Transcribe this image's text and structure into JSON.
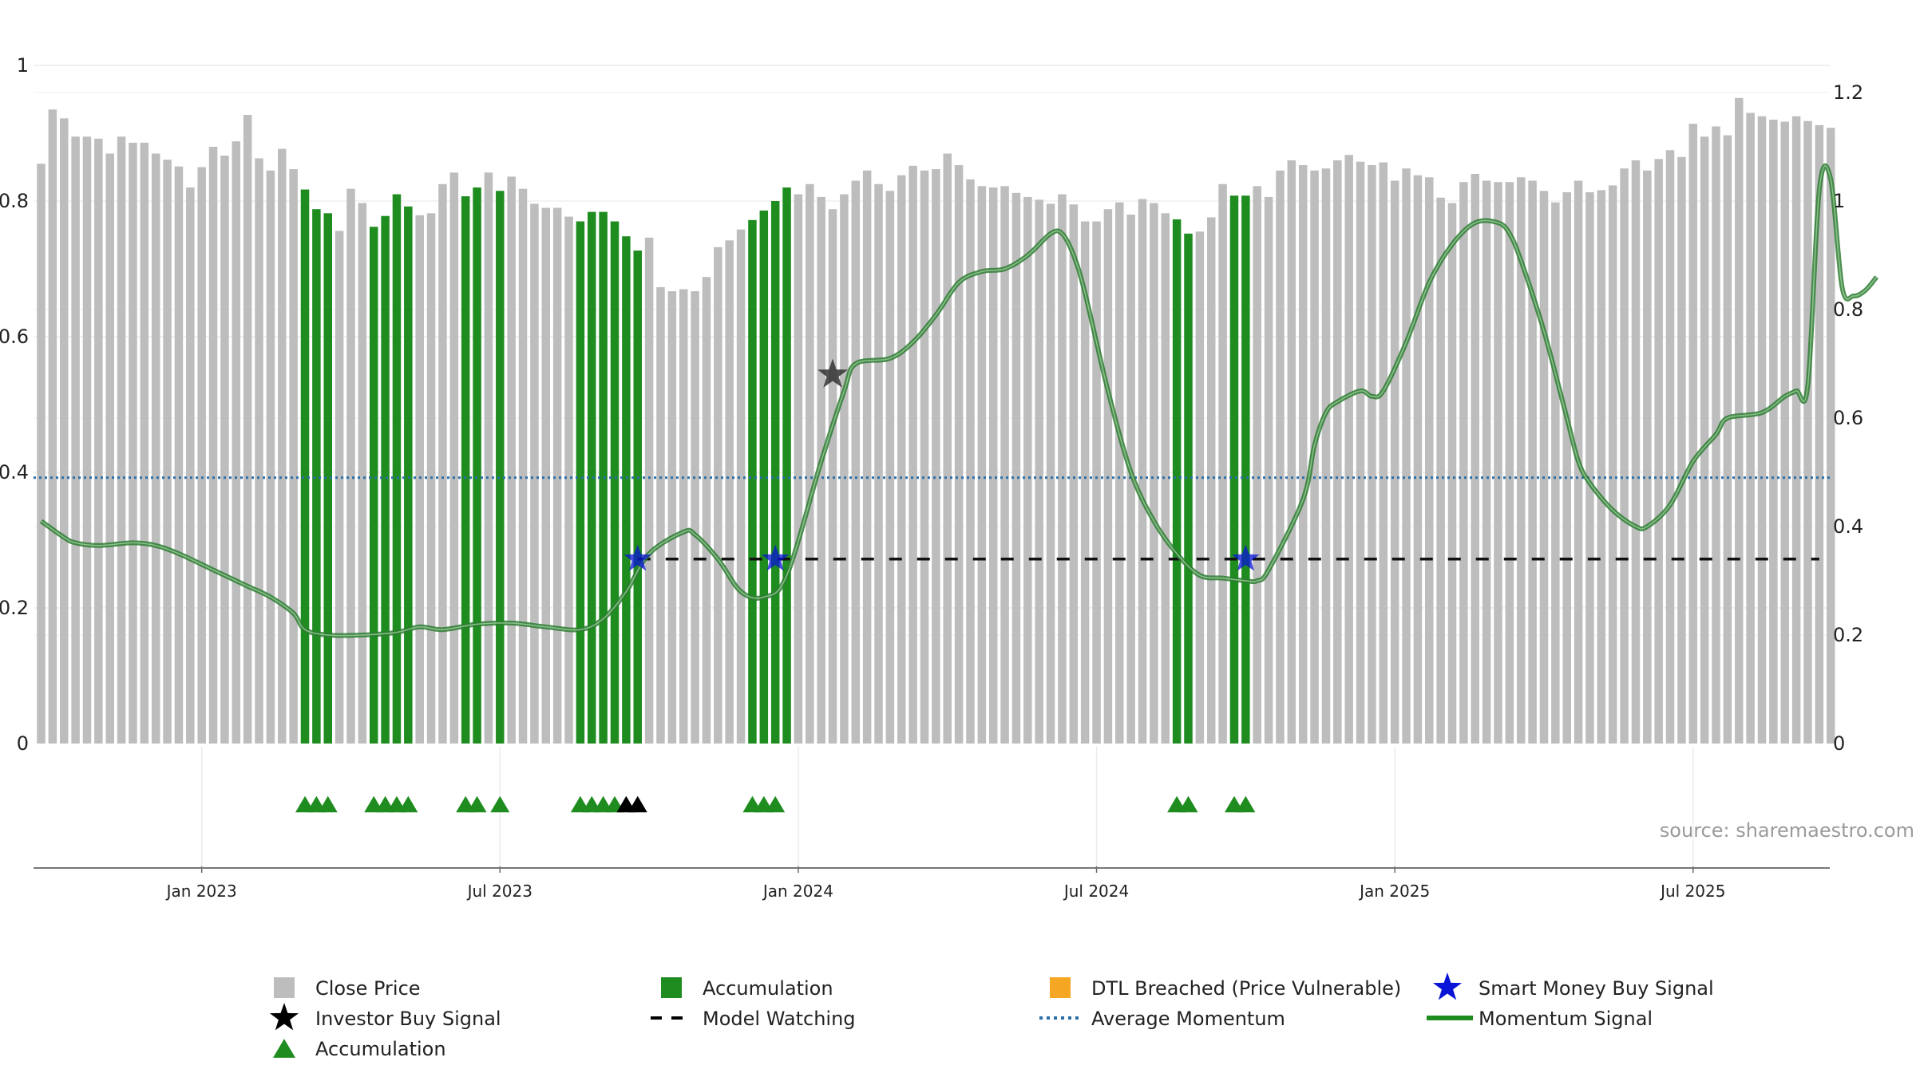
{
  "chart_data": {
    "type": "bar",
    "title": "",
    "source": "source: sharemaestro.com",
    "left_axis": {
      "ylim": [
        0,
        1
      ],
      "ticks": [
        "0",
        "0.2",
        "0.4",
        "0.6",
        "0.8",
        "1"
      ]
    },
    "right_axis": {
      "ylim": [
        0,
        1.25
      ],
      "ticks": [
        "0",
        "0.2",
        "0.4",
        "0.6",
        "0.8",
        "1",
        "1.2"
      ]
    },
    "date_labels": [
      "Jan 2023",
      "Jul 2023",
      "Jan 2024",
      "Jul 2024",
      "Jan 2025",
      "Jul 2025"
    ],
    "date_label_weeks": [
      14,
      40,
      66,
      92,
      118,
      144
    ],
    "close_price": [
      0.855,
      0.935,
      0.922,
      0.895,
      0.895,
      0.892,
      0.87,
      0.895,
      0.886,
      0.886,
      0.87,
      0.861,
      0.851,
      0.82,
      0.85,
      0.88,
      0.867,
      0.888,
      0.927,
      0.863,
      0.845,
      0.877,
      0.847,
      0.817,
      0.788,
      0.782,
      0.756,
      0.818,
      0.797,
      0.762,
      0.778,
      0.81,
      0.792,
      0.779,
      0.782,
      0.825,
      0.842,
      0.807,
      0.82,
      0.842,
      0.815,
      0.836,
      0.818,
      0.796,
      0.79,
      0.79,
      0.777,
      0.77,
      0.784,
      0.784,
      0.77,
      0.748,
      0.727,
      0.746,
      0.673,
      0.667,
      0.67,
      0.667,
      0.688,
      0.732,
      0.742,
      0.758,
      0.772,
      0.786,
      0.8,
      0.82,
      0.81,
      0.825,
      0.806,
      0.788,
      0.81,
      0.83,
      0.845,
      0.825,
      0.815,
      0.838,
      0.852,
      0.845,
      0.847,
      0.87,
      0.853,
      0.832,
      0.822,
      0.82,
      0.822,
      0.812,
      0.806,
      0.802,
      0.796,
      0.81,
      0.795,
      0.77,
      0.77,
      0.788,
      0.798,
      0.78,
      0.803,
      0.797,
      0.782,
      0.773,
      0.752,
      0.755,
      0.776,
      0.825,
      0.808,
      0.808,
      0.822,
      0.806,
      0.845,
      0.86,
      0.853,
      0.845,
      0.848,
      0.86,
      0.868,
      0.858,
      0.853,
      0.857,
      0.83,
      0.848,
      0.838,
      0.835,
      0.805,
      0.797,
      0.828,
      0.84,
      0.83,
      0.828,
      0.828,
      0.835,
      0.83,
      0.815,
      0.798,
      0.813,
      0.83,
      0.813,
      0.816,
      0.823,
      0.848,
      0.86,
      0.845,
      0.862,
      0.875,
      0.865,
      0.914,
      0.895,
      0.91,
      0.897,
      0.952,
      0.93,
      0.925,
      0.92,
      0.917,
      0.925,
      0.918,
      0.912,
      0.908
    ],
    "accumulation_weeks": [
      23,
      24,
      25,
      29,
      30,
      31,
      32,
      37,
      38,
      40,
      47,
      48,
      49,
      50,
      51,
      52,
      62,
      63,
      64,
      65,
      99,
      100,
      104,
      105
    ],
    "accumulation_triangle_weeks": [
      23,
      24,
      25,
      29,
      30,
      31,
      32,
      37,
      38,
      40,
      47,
      48,
      49,
      50,
      62,
      63,
      64,
      99,
      100,
      104,
      105
    ],
    "investor_buy_signals": [
      {
        "week": 51,
        "value": 0.0,
        "row": "marker"
      },
      {
        "week": 52,
        "value": 0.0,
        "row": "marker"
      },
      {
        "week": 69,
        "value": 0.68
      }
    ],
    "smart_money_buy_signals": [
      {
        "week": 52,
        "value": 0.34
      },
      {
        "week": 64,
        "value": 0.34
      },
      {
        "week": 105,
        "value": 0.34
      }
    ],
    "model_watching": {
      "value": 0.34,
      "start_week": 52,
      "end_week": 155
    },
    "average_momentum": 0.49,
    "momentum_signal": [
      [
        0,
        0.41
      ],
      [
        2,
        0.38
      ],
      [
        3,
        0.37
      ],
      [
        5,
        0.365
      ],
      [
        8,
        0.37
      ],
      [
        10,
        0.365
      ],
      [
        12,
        0.35
      ],
      [
        15,
        0.32
      ],
      [
        18,
        0.29
      ],
      [
        20,
        0.27
      ],
      [
        22,
        0.24
      ],
      [
        23,
        0.21
      ],
      [
        25,
        0.2
      ],
      [
        28,
        0.2
      ],
      [
        31,
        0.205
      ],
      [
        33,
        0.215
      ],
      [
        35,
        0.21
      ],
      [
        38,
        0.22
      ],
      [
        41,
        0.222
      ],
      [
        44,
        0.215
      ],
      [
        47,
        0.21
      ],
      [
        49,
        0.23
      ],
      [
        51,
        0.28
      ],
      [
        53,
        0.35
      ],
      [
        56,
        0.39
      ],
      [
        57,
        0.385
      ],
      [
        59,
        0.34
      ],
      [
        61,
        0.28
      ],
      [
        63,
        0.27
      ],
      [
        65,
        0.31
      ],
      [
        68,
        0.52
      ],
      [
        70,
        0.65
      ],
      [
        71,
        0.7
      ],
      [
        74,
        0.71
      ],
      [
        76,
        0.74
      ],
      [
        78,
        0.79
      ],
      [
        80,
        0.85
      ],
      [
        82,
        0.87
      ],
      [
        84,
        0.875
      ],
      [
        86,
        0.9
      ],
      [
        88,
        0.94
      ],
      [
        89,
        0.94
      ],
      [
        90,
        0.9
      ],
      [
        91,
        0.83
      ],
      [
        93,
        0.65
      ],
      [
        95,
        0.5
      ],
      [
        97,
        0.41
      ],
      [
        99,
        0.35
      ],
      [
        101,
        0.31
      ],
      [
        103,
        0.305
      ],
      [
        105,
        0.3
      ],
      [
        106,
        0.3
      ],
      [
        107,
        0.32
      ],
      [
        110,
        0.45
      ],
      [
        111,
        0.55
      ],
      [
        112,
        0.61
      ],
      [
        113,
        0.63
      ],
      [
        115,
        0.65
      ],
      [
        116,
        0.64
      ],
      [
        117,
        0.65
      ],
      [
        119,
        0.74
      ],
      [
        121,
        0.85
      ],
      [
        123,
        0.92
      ],
      [
        125,
        0.96
      ],
      [
        127,
        0.96
      ],
      [
        128,
        0.94
      ],
      [
        129,
        0.89
      ],
      [
        131,
        0.76
      ],
      [
        133,
        0.6
      ],
      [
        134,
        0.52
      ],
      [
        135,
        0.48
      ],
      [
        137,
        0.43
      ],
      [
        139,
        0.4
      ],
      [
        140,
        0.4
      ],
      [
        142,
        0.44
      ],
      [
        144,
        0.52
      ],
      [
        146,
        0.57
      ],
      [
        147,
        0.6
      ],
      [
        150,
        0.61
      ],
      [
        152,
        0.64
      ],
      [
        153,
        0.65
      ],
      [
        154,
        0.66
      ],
      [
        155,
        1.02
      ],
      [
        156,
        1.04
      ],
      [
        157,
        0.84
      ],
      [
        158,
        0.825
      ],
      [
        159,
        0.835
      ],
      [
        160,
        0.86
      ]
    ],
    "legend": [
      {
        "label": "Close Price",
        "symbol": "square",
        "color": "#bdbdbd"
      },
      {
        "label": "Accumulation",
        "symbol": "square",
        "color": "#1f8c1f"
      },
      {
        "label": "DTL Breached (Price Vulnerable)",
        "symbol": "square",
        "color": "#f5a623"
      },
      {
        "label": "Smart Money Buy Signal",
        "symbol": "star",
        "color": "#0a14d6"
      },
      {
        "label": "Investor Buy Signal",
        "symbol": "star",
        "color": "#000000"
      },
      {
        "label": "Model Watching",
        "symbol": "dash",
        "color": "#000000"
      },
      {
        "label": "Average Momentum",
        "symbol": "dot",
        "color": "#2a6fa8"
      },
      {
        "label": "Momentum Signal",
        "symbol": "line",
        "color": "#1f8c1f"
      },
      {
        "label": "Accumulation",
        "symbol": "triangle",
        "color": "#1f8c1f"
      }
    ],
    "colors": {
      "close_price": "#bdbdbd",
      "accumulation": "#1f8c1f",
      "momentum": "#1f8c1f",
      "average_momentum": "#2a6fa8",
      "smart_money": "#0a14d6",
      "investor": "#000000"
    }
  }
}
